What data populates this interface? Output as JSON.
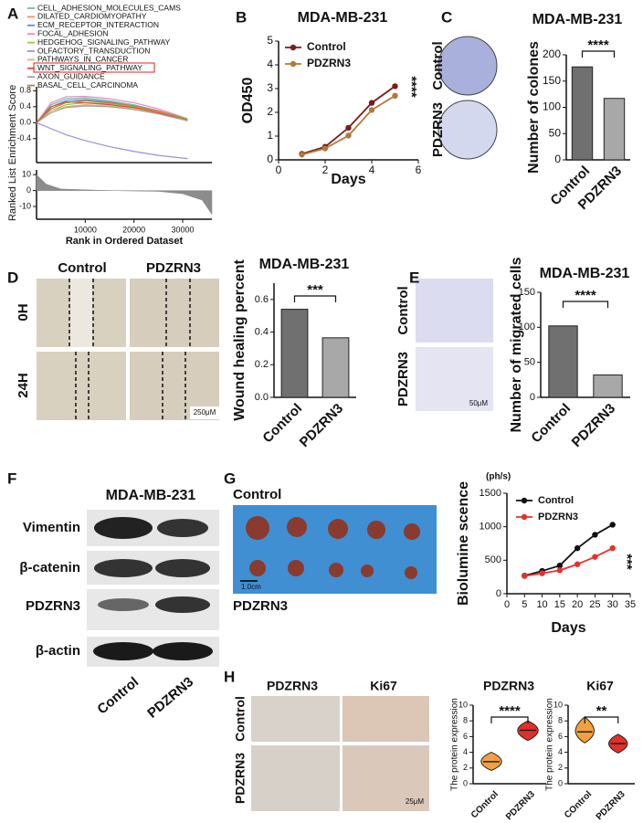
{
  "chart_data": [
    {
      "type": "line",
      "panel": "A",
      "ylabel": "Enrichment Score",
      "xlim": [
        0,
        36000
      ],
      "ylim": [
        -1,
        0.9
      ],
      "yticks": [
        -0.4,
        {
          "value": 0,
          "label": "0.0"
        },
        0.4,
        0.8
      ],
      "markers": false,
      "x": [
        0,
        3000,
        6000,
        10000,
        15000,
        20000,
        25000,
        31000
      ],
      "series": [
        {
          "name": "CELL_ADHESION_MOLECULES_CAMS",
          "color": "#66c2a5",
          "values": [
            0,
            0.45,
            0.6,
            0.62,
            0.55,
            0.45,
            0.3,
            0.05
          ]
        },
        {
          "name": "DILATED_CARDIOMYOPATHY",
          "color": "#fc8d62",
          "values": [
            0,
            0.35,
            0.5,
            0.55,
            0.5,
            0.4,
            0.28,
            0.05
          ]
        },
        {
          "name": "ECM_RECEPTOR_INTERACTION",
          "color": "#5b8ed6",
          "values": [
            0,
            0.4,
            0.55,
            0.58,
            0.52,
            0.42,
            0.3,
            0.08
          ]
        },
        {
          "name": "FOCAL_ADHESION",
          "color": "#e78ac3",
          "values": [
            0,
            0.5,
            0.65,
            0.66,
            0.6,
            0.5,
            0.35,
            0.1
          ]
        },
        {
          "name": "HEDGEHOG_SIGNALING_PATHWAY",
          "color": "#8fcf3c",
          "values": [
            0,
            0.3,
            0.45,
            0.5,
            0.48,
            0.4,
            0.3,
            0.1
          ]
        },
        {
          "name": "OLFACTORY_TRANSDUCTION",
          "color": "#9b8fd8",
          "values": [
            0,
            -0.15,
            -0.3,
            -0.45,
            -0.6,
            -0.72,
            -0.82,
            -0.9
          ]
        },
        {
          "name": "PATHWAYS_IN_CANCER",
          "color": "#d9b86c",
          "values": [
            0,
            0.3,
            0.4,
            0.45,
            0.42,
            0.36,
            0.25,
            0.05
          ]
        },
        {
          "name": "WNT_SIGNALING_PATHWAY",
          "color": "#e8463a",
          "values": [
            0,
            0.4,
            0.52,
            0.5,
            0.45,
            0.38,
            0.25,
            0.05
          ]
        },
        {
          "name": "AXON_GUIDANCE",
          "color": "#a0a0a0",
          "values": [
            0,
            0.25,
            0.38,
            0.42,
            0.4,
            0.33,
            0.22,
            0.05
          ]
        },
        {
          "name": "BASAL_CELL_CARCINOMA",
          "color": "#b5834a",
          "values": [
            0,
            0.35,
            0.5,
            0.55,
            0.5,
            0.42,
            0.3,
            0.08
          ]
        }
      ]
    },
    {
      "type": "area",
      "ylabel": "Ranked List",
      "xlabel": "Rank in Ordered Dataset",
      "xlim": [
        0,
        36000
      ],
      "ylim": [
        -18,
        13
      ],
      "xticks": [
        10000,
        20000,
        30000
      ],
      "yticks": [
        -10,
        0,
        10
      ],
      "color": "#8c8c8c",
      "x": [
        0,
        2000,
        5000,
        15000,
        25000,
        30000,
        34000,
        36000
      ],
      "values": [
        10,
        4,
        1,
        0,
        -0.5,
        -2,
        -6,
        -15
      ]
    },
    {
      "type": "line",
      "panel": "B",
      "title": "MDA-MB-231",
      "ylabel": "OD450",
      "xlabel": "Days",
      "annotation": "****",
      "xlim": [
        0,
        6
      ],
      "xticks": [
        0,
        2,
        4,
        6
      ],
      "ylim": [
        0,
        5
      ],
      "yticks": [
        0,
        1,
        2,
        3,
        4,
        5
      ],
      "x": [
        1,
        2,
        3,
        4,
        5
      ],
      "series": [
        {
          "name": "Control",
          "color": "#7b1a1a",
          "values": [
            0.25,
            0.55,
            1.35,
            2.4,
            3.1
          ]
        },
        {
          "name": "PDZRN3",
          "color": "#b07a3a",
          "values": [
            0.22,
            0.48,
            1.02,
            2.1,
            2.7
          ]
        }
      ]
    },
    {
      "type": "bar",
      "panel": "C",
      "title": "MDA-MB-231",
      "ylabel": "Number of colones",
      "annotation": "****",
      "categories": [
        "Control",
        "PDZRN3"
      ],
      "values": [
        177,
        117
      ],
      "colors": [
        "#707070",
        "#a8a8a8"
      ],
      "ylim": [
        0,
        200
      ],
      "yticks": [
        0,
        50,
        100,
        150,
        200
      ]
    },
    {
      "type": "bar",
      "panel": "D",
      "title": "MDA-MB-231",
      "ylabel": "Wound healing percent",
      "annotation": "***",
      "categories": [
        "Control",
        "PDZRN3"
      ],
      "values": [
        0.54,
        0.365
      ],
      "colors": [
        "#707070",
        "#a8a8a8"
      ],
      "ylim": [
        0,
        0.7
      ],
      "yticks": [
        {
          "value": 0,
          "label": "0.0"
        },
        0.2,
        0.4,
        0.6
      ]
    },
    {
      "type": "bar",
      "panel": "E",
      "title": "MDA-MB-231",
      "ylabel": "Number of migrated cells",
      "annotation": "****",
      "categories": [
        "Control",
        "PDZRN3"
      ],
      "values": [
        102,
        32
      ],
      "colors": [
        "#707070",
        "#a8a8a8"
      ],
      "ylim": [
        0,
        150
      ],
      "yticks": [
        0,
        50,
        100,
        150
      ]
    },
    {
      "type": "line",
      "panel": "G",
      "unit": "(ph/s)",
      "ylabel": "Biolumine scence",
      "xlabel": "Days",
      "annotation": "***",
      "xlim": [
        0,
        35
      ],
      "xticks": [
        0,
        5,
        10,
        15,
        20,
        25,
        30,
        35
      ],
      "ylim": [
        0,
        1500
      ],
      "yticks": [
        0,
        500,
        1000,
        1500
      ],
      "x": [
        5,
        10,
        15,
        20,
        25,
        30
      ],
      "series": [
        {
          "name": "Control",
          "color": "#111111",
          "values": [
            270,
            340,
            420,
            680,
            880,
            1030
          ]
        },
        {
          "name": "PDZRN3",
          "color": "#e8302a",
          "values": [
            265,
            305,
            350,
            440,
            550,
            680
          ]
        }
      ]
    },
    {
      "type": "violin",
      "title": "PDZRN3",
      "ylabel": "The protein expression",
      "annotation": "****",
      "categories": [
        "COntrol",
        "PDZRN3"
      ],
      "values": [
        2.8,
        6.8
      ],
      "low": [
        1.7,
        5.5
      ],
      "high": [
        4.0,
        8.0
      ],
      "colors": [
        "#f5a040",
        "#e0302a"
      ],
      "ylim": [
        0,
        10
      ],
      "yticks": [
        0,
        2,
        4,
        6,
        8,
        10
      ]
    },
    {
      "type": "violin",
      "title": "Ki67",
      "ylabel": "The protein expression",
      "annotation": "**",
      "categories": [
        "COntrol",
        "PDZRN3"
      ],
      "values": [
        6.6,
        5.1
      ],
      "low": [
        5.2,
        3.9
      ],
      "high": [
        8.5,
        6.3
      ],
      "colors": [
        "#f5a040",
        "#e0302a"
      ],
      "ylim": [
        0,
        10
      ],
      "yticks": [
        0,
        2,
        4,
        6,
        8,
        10
      ]
    }
  ],
  "images": {
    "C": {
      "rows": [
        "Control",
        "PDZRN3"
      ]
    },
    "D": {
      "columns": [
        "Control",
        "PDZRN3"
      ],
      "rows": [
        "0H",
        "24H"
      ],
      "scale": "250μM"
    },
    "E": {
      "rows": [
        "Control",
        "PDZRN3"
      ],
      "scale": "50μM"
    },
    "F": {
      "letter": "F",
      "title": "MDA-MB-231",
      "rows": [
        "Vimentin",
        "β-catenin",
        "PDZRN3",
        "β-actin"
      ],
      "columns": [
        "Control",
        "PDZRN3"
      ]
    },
    "G": {
      "top": "Control",
      "bottom": "PDZRN3",
      "scale": "1.0cm"
    },
    "H": {
      "letter": "H",
      "columns": [
        "PDZRN3",
        "Ki67"
      ],
      "rows": [
        "Control",
        "PDZRN3"
      ],
      "scale": "25μM"
    }
  }
}
